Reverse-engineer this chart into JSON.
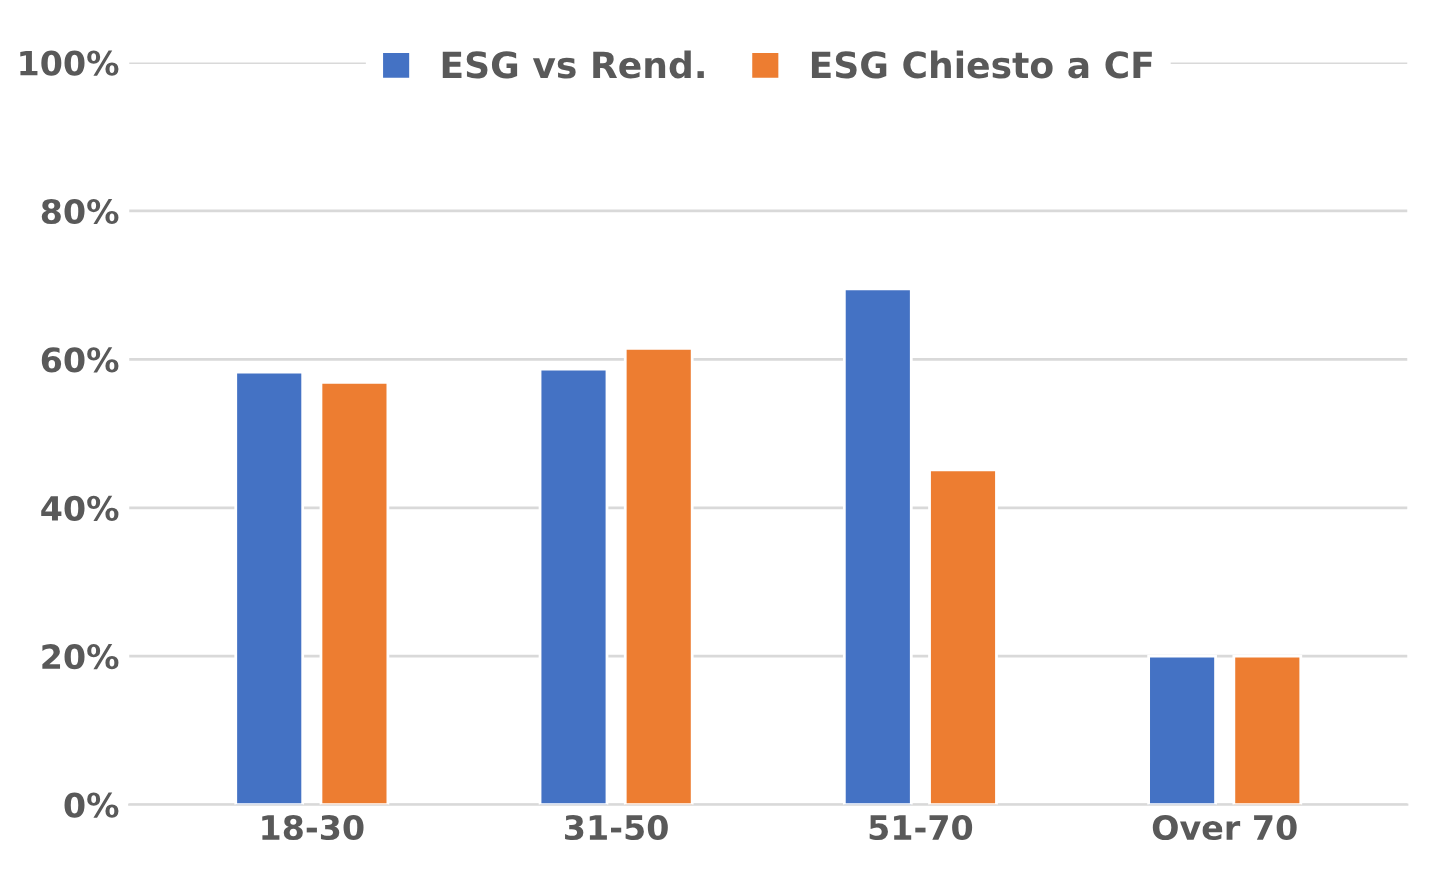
{
  "chart_data": {
    "type": "bar",
    "categories": [
      "18-30",
      "31-50",
      "51-70",
      "Over 70"
    ],
    "series": [
      {
        "name": "ESG vs Rend.",
        "color": "#4472c4",
        "values": [
          58.3,
          58.7,
          69.5,
          20
        ]
      },
      {
        "name": "ESG Chiesto a CF",
        "color": "#ed7d31",
        "values": [
          56.9,
          61.5,
          45.1,
          20
        ]
      }
    ],
    "ylim": [
      0,
      100
    ],
    "yticks": [
      {
        "value": 0,
        "label": "0%"
      },
      {
        "value": 20,
        "label": "20%"
      },
      {
        "value": 40,
        "label": "40%"
      },
      {
        "value": 60,
        "label": "60%"
      },
      {
        "value": 80,
        "label": "80%"
      },
      {
        "value": 100,
        "label": "100%"
      }
    ],
    "grid": "y",
    "legend": "top"
  }
}
